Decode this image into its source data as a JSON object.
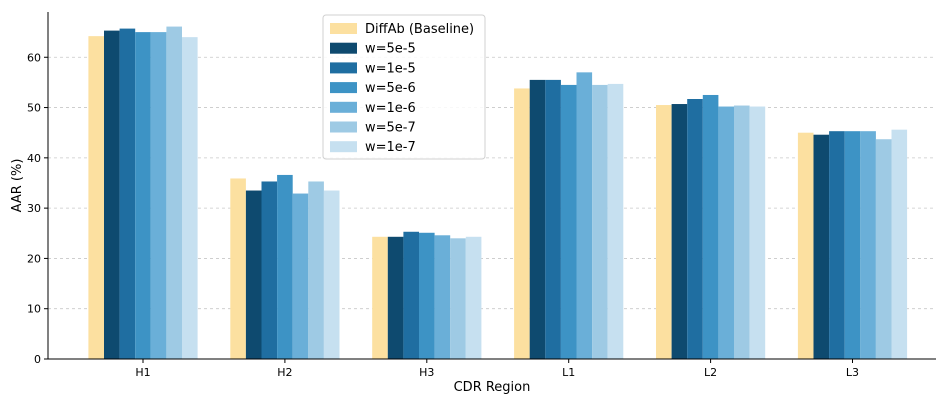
{
  "chart_data": {
    "type": "bar",
    "title": "",
    "xlabel": "CDR Region",
    "ylabel": "AAR (%)",
    "categories": [
      "H1",
      "H2",
      "H3",
      "L1",
      "L2",
      "L3"
    ],
    "ylim": [
      0,
      69
    ],
    "yticks": [
      0,
      10,
      20,
      30,
      40,
      50,
      60
    ],
    "grid": "y-dashed",
    "legend_position": "top-center",
    "series": [
      {
        "name": "DiffAb (Baseline)",
        "color": "#FCE0A0",
        "values": [
          64.2,
          35.9,
          24.3,
          53.8,
          50.5,
          45.0
        ]
      },
      {
        "name": "w=5e-5",
        "color": "#0E4A6F",
        "values": [
          65.3,
          33.5,
          24.3,
          55.5,
          50.7,
          44.6
        ]
      },
      {
        "name": "w=1e-5",
        "color": "#1F6EA1",
        "values": [
          65.7,
          35.3,
          25.3,
          55.5,
          51.7,
          45.3
        ]
      },
      {
        "name": "w=5e-6",
        "color": "#3D93C5",
        "values": [
          65.0,
          36.6,
          25.1,
          54.5,
          52.5,
          45.3
        ]
      },
      {
        "name": "w=1e-6",
        "color": "#6AAFD8",
        "values": [
          65.0,
          32.9,
          24.6,
          57.0,
          50.2,
          45.3
        ]
      },
      {
        "name": "w=5e-7",
        "color": "#9ECAE4",
        "values": [
          66.1,
          35.3,
          24.0,
          54.5,
          50.4,
          43.7
        ]
      },
      {
        "name": "w=1e-7",
        "color": "#C6E0F0",
        "values": [
          64.0,
          33.5,
          24.3,
          54.7,
          50.2,
          45.6
        ]
      }
    ]
  }
}
